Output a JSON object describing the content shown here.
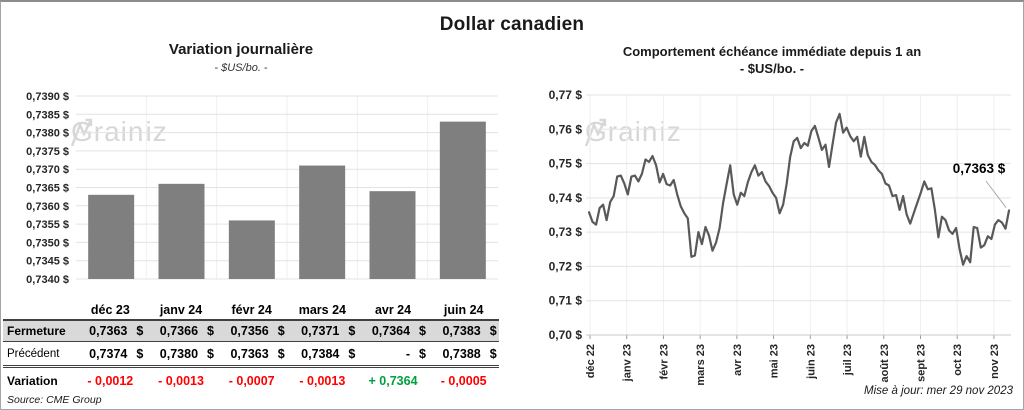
{
  "app": {
    "title": "Dollar canadien",
    "source_label": "Source: CME Group",
    "updated_label": "Mise à jour: mer 29 nov 2023"
  },
  "watermark": {
    "prefix": "Grain",
    "suffix": "iz"
  },
  "colors": {
    "bar": "#7f7f7f",
    "line": "#595959",
    "grid": "#e3e3e3",
    "grid_vertical": "#efefef",
    "axis": "#c8c8c8",
    "tick": "#9b9b9b",
    "leader": "#aaaaaa",
    "table_border": "#404040",
    "shaded_row": "#d9d9d9",
    "negative": "#ff0000",
    "positive": "#00a03c",
    "watermark": "#d7d7d7"
  },
  "chart_data": [
    {
      "type": "bar",
      "title": "Variation journalière",
      "subtitle": "- $US/bo. -",
      "categories": [
        "déc 23",
        "janv 24",
        "févr 24",
        "mars 24",
        "avr 24",
        "juin 24"
      ],
      "values": [
        0.7363,
        0.7366,
        0.7356,
        0.7371,
        0.7364,
        0.7383
      ],
      "ylabel": "$US/bo.",
      "ylim": [
        0.734,
        0.739
      ],
      "ytick_step": 0.0005,
      "y_decimals": 4,
      "ytick_suffix": " $",
      "grid": true,
      "legend": "none"
    },
    {
      "type": "line",
      "title": "Comportement échéance immédiate depuis 1 an",
      "subtitle": "- $US/bo. -",
      "x_labels": [
        "déc 22",
        "janv 23",
        "févr 23",
        "mars 23",
        "avr 23",
        "mai 23",
        "juin 23",
        "juil 23",
        "août 23",
        "sept 23",
        "oct 23",
        "nov 23"
      ],
      "values": [
        0.7358,
        0.733,
        0.7322,
        0.737,
        0.738,
        0.7335,
        0.7388,
        0.7405,
        0.7462,
        0.7465,
        0.7442,
        0.741,
        0.7462,
        0.7465,
        0.7448,
        0.747,
        0.7512,
        0.7505,
        0.7522,
        0.7495,
        0.7445,
        0.747,
        0.744,
        0.7436,
        0.7452,
        0.741,
        0.7375,
        0.7355,
        0.734,
        0.7228,
        0.7232,
        0.73,
        0.7265,
        0.7315,
        0.729,
        0.7246,
        0.727,
        0.7312,
        0.7385,
        0.744,
        0.7495,
        0.741,
        0.738,
        0.7415,
        0.7405,
        0.7445,
        0.7475,
        0.7495,
        0.7465,
        0.7475,
        0.7448,
        0.7435,
        0.7415,
        0.74,
        0.7355,
        0.738,
        0.744,
        0.752,
        0.7565,
        0.7575,
        0.7545,
        0.756,
        0.7552,
        0.7595,
        0.761,
        0.7576,
        0.754,
        0.7555,
        0.749,
        0.7555,
        0.762,
        0.7645,
        0.759,
        0.7605,
        0.758,
        0.7565,
        0.7578,
        0.752,
        0.7578,
        0.7525,
        0.7505,
        0.7496,
        0.748,
        0.747,
        0.7442,
        0.7436,
        0.7405,
        0.7408,
        0.7365,
        0.7405,
        0.7352,
        0.7325,
        0.7355,
        0.7385,
        0.7415,
        0.7448,
        0.7425,
        0.7428,
        0.7365,
        0.7285,
        0.7345,
        0.7335,
        0.7305,
        0.7295,
        0.7312,
        0.725,
        0.7205,
        0.723,
        0.7212,
        0.7315,
        0.7312,
        0.7255,
        0.7262,
        0.7288,
        0.728,
        0.7322,
        0.7335,
        0.7328,
        0.731,
        0.7363
      ],
      "ylabel": "$US/bo.",
      "ylim": [
        0.7,
        0.77
      ],
      "ytick_step": 0.01,
      "y_decimals": 2,
      "ytick_suffix": " $",
      "grid": true,
      "legend": "none",
      "annotation": {
        "text": "0,7363 $",
        "value": 0.7363
      }
    }
  ],
  "table": {
    "columns": [
      "déc 23",
      "janv 24",
      "févr 24",
      "mars 24",
      "avr 24",
      "juin 24"
    ],
    "rows": [
      {
        "label": "Fermeture",
        "bold_label": true,
        "currency": "$",
        "values": [
          "0,7363",
          "0,7366",
          "0,7356",
          "0,7371",
          "0,7364",
          "0,7383"
        ]
      },
      {
        "label": "Précédent",
        "bold_label": false,
        "currency": "$",
        "values": [
          "0,7374",
          "0,7380",
          "0,7363",
          "0,7384",
          "-",
          "0,7388"
        ]
      },
      {
        "label": "Variation",
        "bold_label": true,
        "values": [
          "- 0,0012",
          "- 0,0013",
          "- 0,0007",
          "- 0,0013",
          "+ 0,7364",
          "- 0,0005"
        ],
        "colors": [
          "neg",
          "neg",
          "neg",
          "neg",
          "pos",
          "neg"
        ]
      }
    ]
  }
}
